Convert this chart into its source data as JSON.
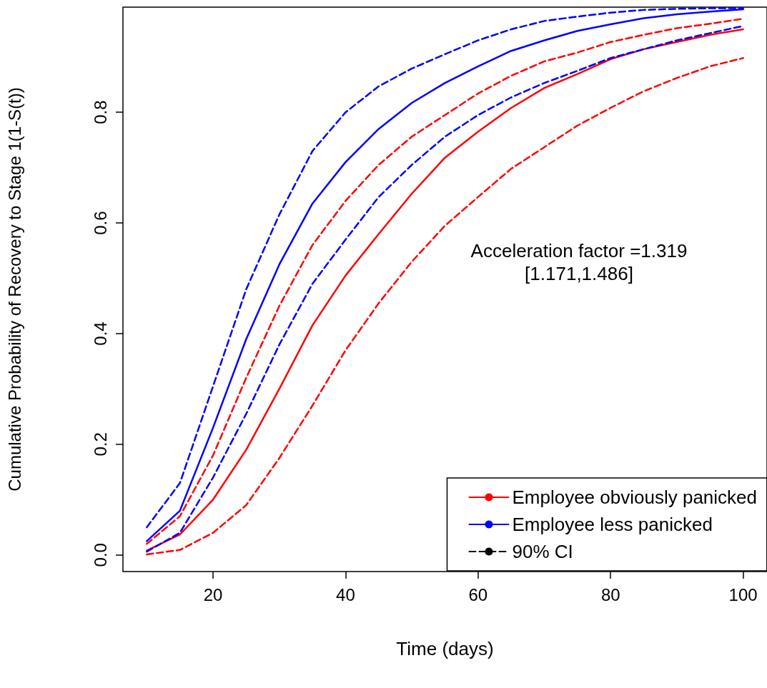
{
  "chart_data": {
    "type": "line",
    "xlabel": "Time (days)",
    "ylabel": "Cumulative Probability of Recovery to Stage 1(1-S(t))",
    "x": [
      10,
      15,
      20,
      25,
      30,
      35,
      40,
      45,
      50,
      55,
      60,
      65,
      70,
      75,
      80,
      85,
      90,
      95,
      100
    ],
    "xlim": [
      6.4,
      103.6
    ],
    "xticks": [
      20,
      40,
      60,
      80,
      100
    ],
    "ylim": [
      -0.03,
      0.99
    ],
    "yticks": [
      {
        "value": 0,
        "label": "0.0"
      },
      0.2,
      0.4,
      0.6,
      0.8
    ],
    "grid": false,
    "legend": "bottom right",
    "marker": "none",
    "annotations": [
      "Acceleration factor =1.319\n[1.171,1.486]"
    ],
    "series": [
      {
        "name": "Employee obviously panicked",
        "color": "#ff0000",
        "line_style": "solid",
        "values": [
          0.008,
          0.037,
          0.1,
          0.19,
          0.3,
          0.415,
          0.505,
          0.58,
          0.653,
          0.718,
          0.765,
          0.808,
          0.844,
          0.869,
          0.896,
          0.914,
          0.927,
          0.94,
          0.95
        ]
      },
      {
        "name": "Employee less panicked",
        "color": "#0000ff",
        "line_style": "solid",
        "values": [
          0.025,
          0.08,
          0.23,
          0.39,
          0.525,
          0.635,
          0.71,
          0.77,
          0.817,
          0.853,
          0.883,
          0.911,
          0.93,
          0.947,
          0.959,
          0.97,
          0.977,
          0.982,
          0.986
        ]
      },
      {
        "name": "90% CI",
        "color": "#000000",
        "line_style": "dashed",
        "values": [
          null,
          null,
          null,
          null,
          null,
          null,
          null,
          null,
          null,
          null,
          null,
          null,
          null,
          null,
          null,
          null,
          null,
          null,
          null
        ]
      },
      {
        "color": "#ff0000",
        "line_style": "dashed",
        "values": [
          0.02,
          0.07,
          0.18,
          0.32,
          0.45,
          0.56,
          0.64,
          0.705,
          0.756,
          0.795,
          0.834,
          0.866,
          0.892,
          0.908,
          0.927,
          0.94,
          0.952,
          0.96,
          0.969
        ]
      },
      {
        "color": "#ff0000",
        "line_style": "dashed",
        "values": [
          0.001,
          0.009,
          0.04,
          0.09,
          0.175,
          0.27,
          0.37,
          0.455,
          0.53,
          0.595,
          0.647,
          0.698,
          0.737,
          0.776,
          0.808,
          0.838,
          0.862,
          0.883,
          0.898
        ]
      },
      {
        "color": "#0000ff",
        "line_style": "dashed",
        "values": [
          0.05,
          0.13,
          0.305,
          0.48,
          0.615,
          0.73,
          0.8,
          0.847,
          0.879,
          0.905,
          0.93,
          0.95,
          0.965,
          0.973,
          0.98,
          0.985,
          0.987,
          0.988,
          0.988
        ]
      },
      {
        "color": "#0000ff",
        "line_style": "dashed",
        "values": [
          0.006,
          0.04,
          0.14,
          0.255,
          0.38,
          0.49,
          0.57,
          0.647,
          0.705,
          0.756,
          0.795,
          0.827,
          0.853,
          0.875,
          0.898,
          0.914,
          0.93,
          0.943,
          0.956
        ]
      }
    ]
  }
}
